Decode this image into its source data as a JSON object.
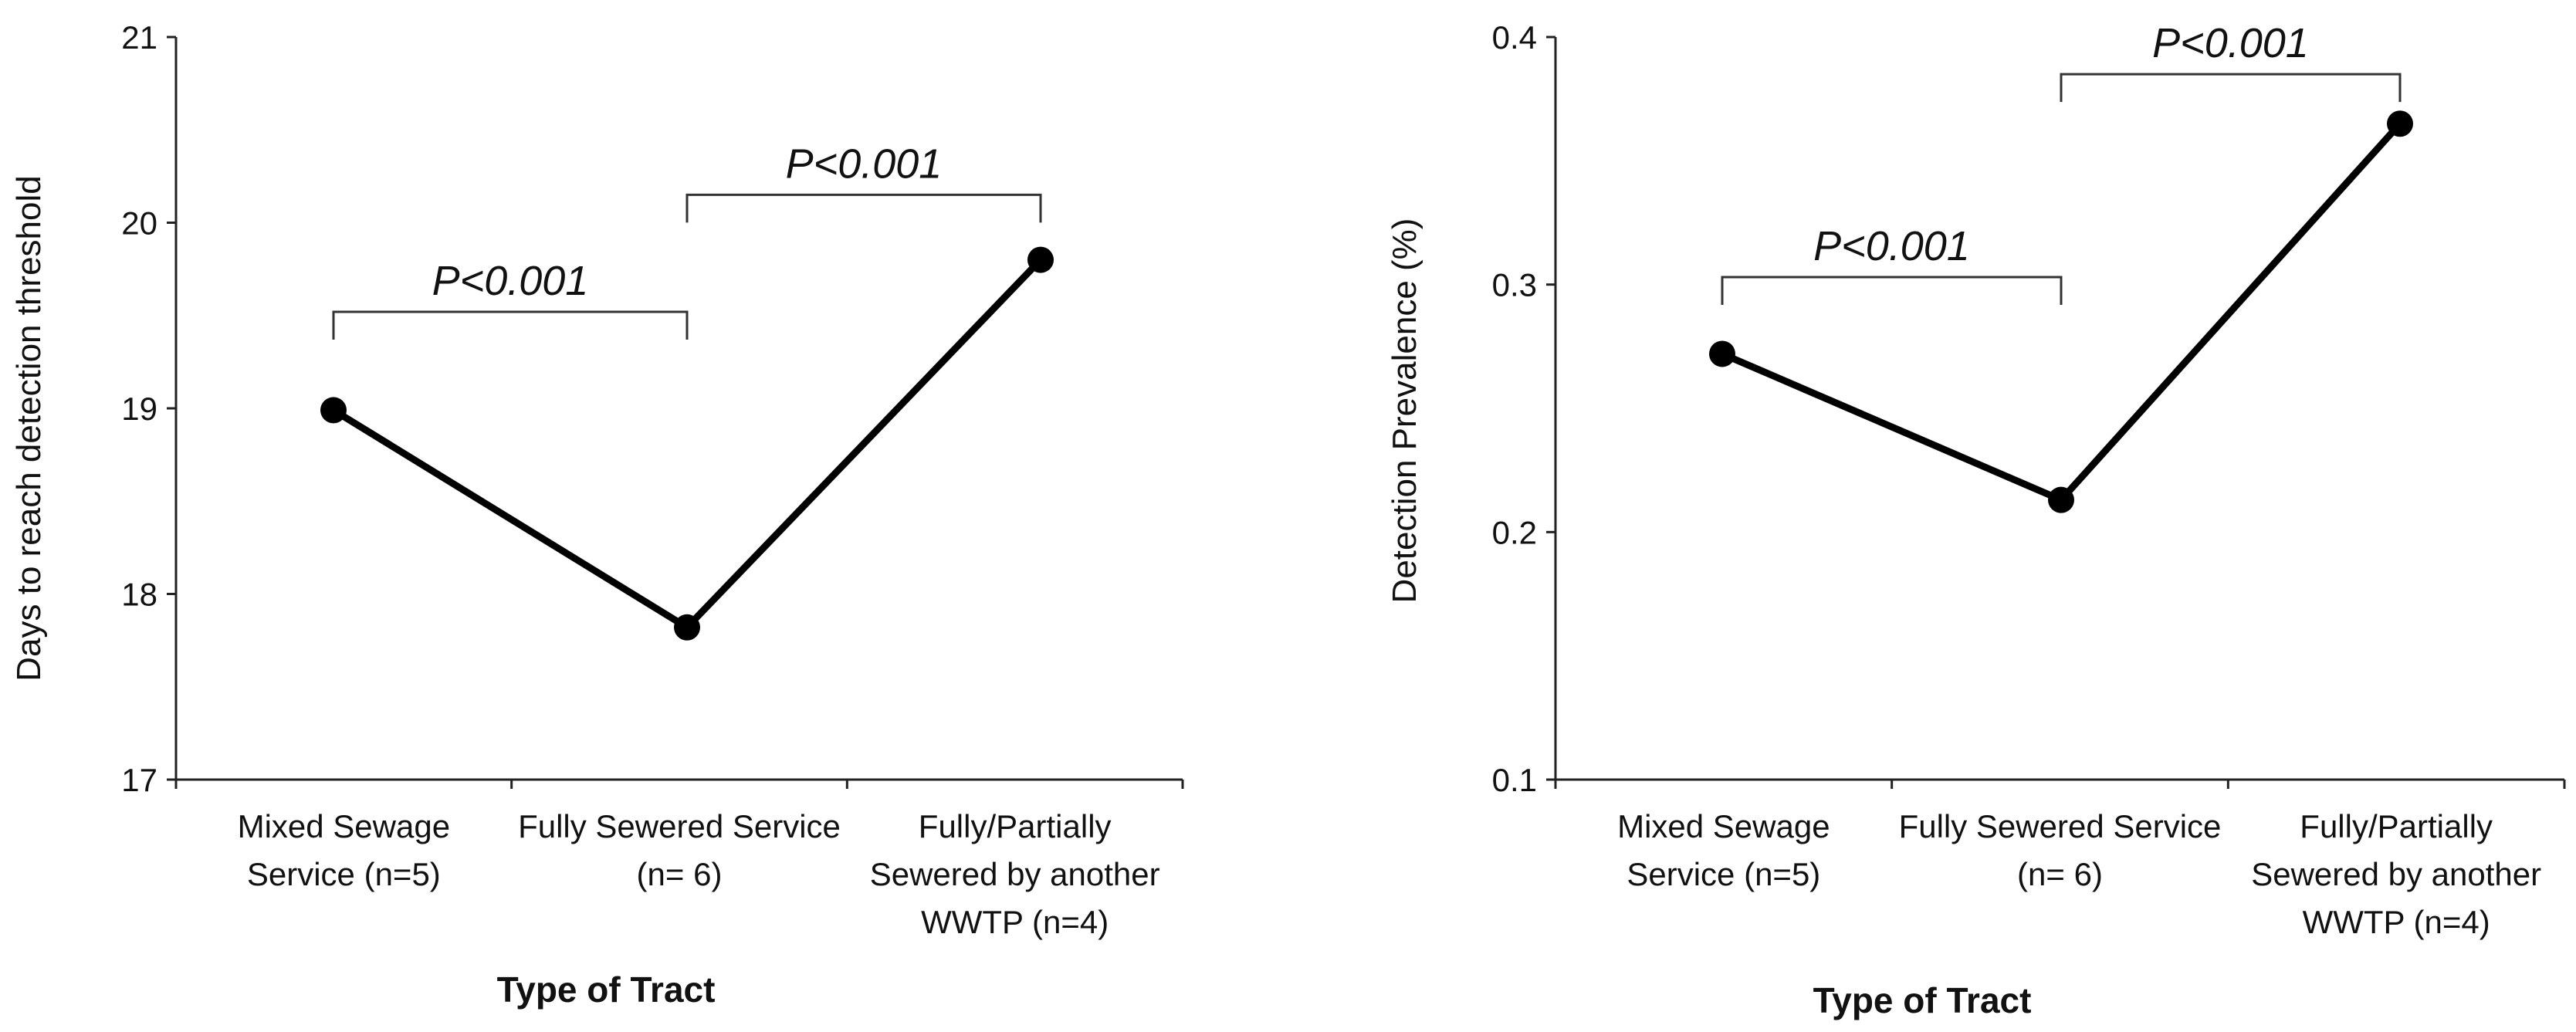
{
  "chart_data": [
    {
      "type": "line",
      "xlabel": "Type of Tract",
      "ylabel": "Days to reach detection threshold",
      "ylim": [
        17,
        21
      ],
      "yticks": [
        "17",
        "18",
        "19",
        "20",
        "21"
      ],
      "categories": [
        [
          "Mixed Sewage",
          "Service (n=5)"
        ],
        [
          "Fully Sewered Service",
          "(n= 6)"
        ],
        [
          "Fully/Partially",
          "Sewered by another",
          "WWTP (n=4)"
        ]
      ],
      "values": [
        18.99,
        17.82,
        19.8
      ],
      "annotations": [
        {
          "from": 0,
          "to": 1,
          "level": 19.52,
          "text": "P<0.001"
        },
        {
          "from": 1,
          "to": 2,
          "level": 20.15,
          "text": "P<0.001"
        }
      ]
    },
    {
      "type": "line",
      "xlabel": "Type of Tract",
      "ylabel": "Detection Prevalence (%)",
      "ylim": [
        0.1,
        0.4
      ],
      "yticks": [
        "0.1",
        "0.2",
        "0.3",
        "0.4"
      ],
      "categories": [
        [
          "Mixed Sewage",
          "Service (n=5)"
        ],
        [
          "Fully Sewered Service",
          "(n= 6)"
        ],
        [
          "Fully/Partially",
          "Sewered by another",
          "WWTP (n=4)"
        ]
      ],
      "values": [
        0.272,
        0.213,
        0.365
      ],
      "annotations": [
        {
          "from": 0,
          "to": 1,
          "level": 0.303,
          "text": "P<0.001"
        },
        {
          "from": 1,
          "to": 2,
          "level": 0.385,
          "text": "P<0.001"
        }
      ]
    }
  ]
}
